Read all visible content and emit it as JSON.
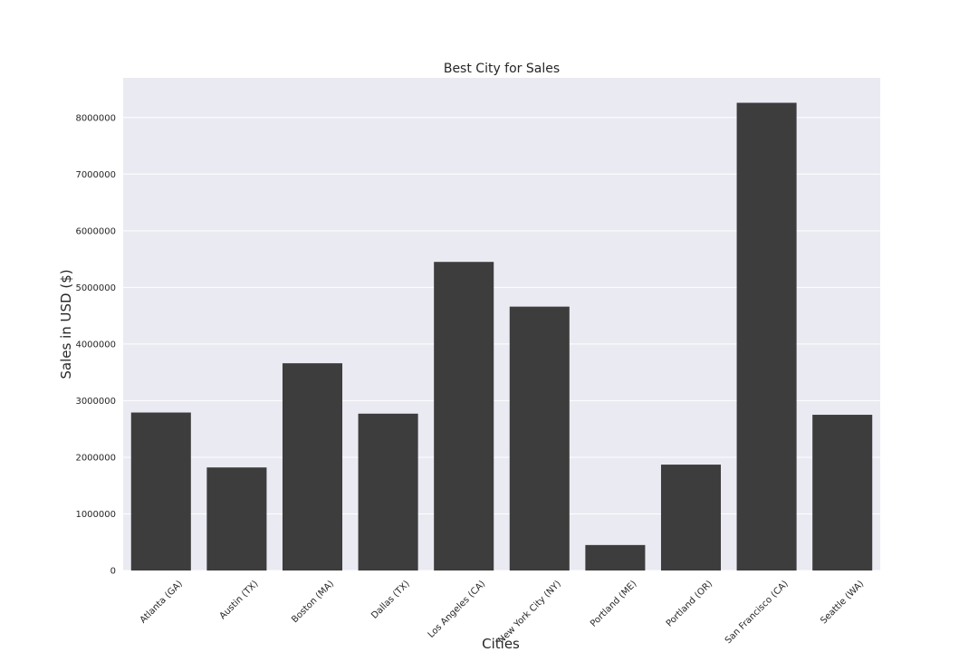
{
  "chart_data": {
    "type": "bar",
    "title": "Best City for Sales",
    "xlabel": "Cities",
    "ylabel": "Sales in USD ($)",
    "categories": [
      "Atlanta (GA)",
      "Austin (TX)",
      "Boston (MA)",
      "Dallas (TX)",
      "Los Angeles (CA)",
      "New York City (NY)",
      "Portland (ME)",
      "Portland (OR)",
      "San Francisco (CA)",
      "Seattle (WA)"
    ],
    "values": [
      2790000,
      1820000,
      3660000,
      2770000,
      5450000,
      4660000,
      450000,
      1870000,
      8260000,
      2750000
    ],
    "ylim": [
      0,
      8700000
    ],
    "yticks": [
      0,
      1000000,
      2000000,
      3000000,
      4000000,
      5000000,
      6000000,
      7000000,
      8000000
    ],
    "grid": true,
    "bar_color": "#3d3d3d",
    "background_color": "#eaeaf2"
  }
}
